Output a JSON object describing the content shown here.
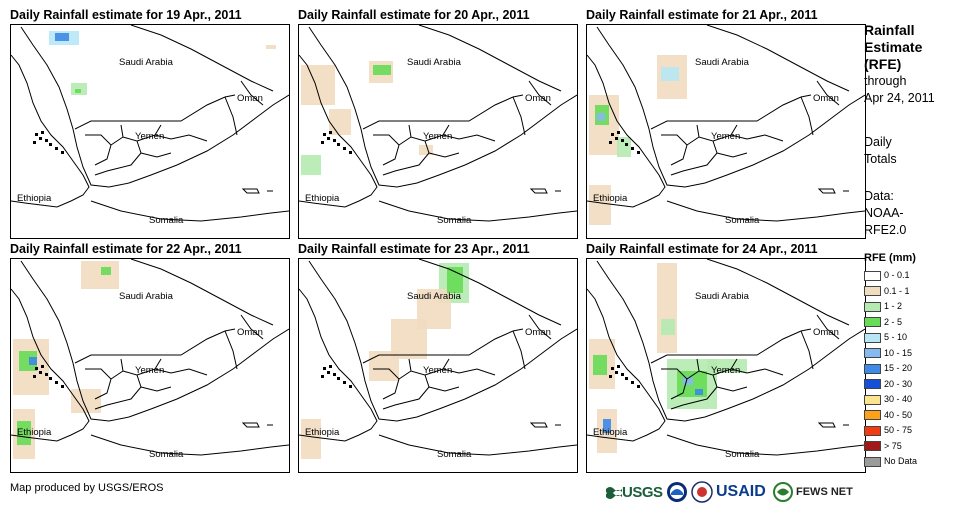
{
  "panels": [
    {
      "title": "Daily Rainfall estimate for 19 Apr., 2011"
    },
    {
      "title": "Daily Rainfall estimate for 20 Apr., 2011"
    },
    {
      "title": "Daily Rainfall estimate for 21 Apr., 2011"
    },
    {
      "title": "Daily Rainfall estimate for 22 Apr., 2011"
    },
    {
      "title": "Daily Rainfall estimate for 23 Apr., 2011"
    },
    {
      "title": "Daily Rainfall estimate for 24 Apr., 2011"
    }
  ],
  "labels": {
    "saudi": "Saudi Arabia",
    "oman": "Oman",
    "yemen": "Yemen",
    "ethiopia": "Ethiopia",
    "somalia": "Somalia"
  },
  "side": {
    "heading_lines": [
      "Rainfall",
      "Estimate",
      "(RFE)"
    ],
    "through_lines": [
      "through",
      "Apr 24, 2011"
    ],
    "totals_lines": [
      "Daily",
      "Totals"
    ],
    "data_lines": [
      "Data:",
      "NOAA-",
      "RFE2.0"
    ]
  },
  "legend": {
    "title": "RFE (mm)",
    "items": [
      {
        "label": "0 - 0.1",
        "color": "#ffffff"
      },
      {
        "label": "0.1 - 1",
        "color": "#f2dcc0"
      },
      {
        "label": "1 - 2",
        "color": "#b5eab0"
      },
      {
        "label": "2 - 5",
        "color": "#66dd55"
      },
      {
        "label": "5 - 10",
        "color": "#b7e7f5"
      },
      {
        "label": "10 - 15",
        "color": "#86b9f0"
      },
      {
        "label": "15 - 20",
        "color": "#3d8ae8"
      },
      {
        "label": "20 - 30",
        "color": "#1450d8"
      },
      {
        "label": "30 - 40",
        "color": "#fbe48e"
      },
      {
        "label": "40 - 50",
        "color": "#fba21a"
      },
      {
        "label": "50 - 75",
        "color": "#f03c10"
      },
      {
        "label": "> 75",
        "color": "#a01818"
      },
      {
        "label": "No Data",
        "color": "#9b9b9b"
      }
    ]
  },
  "footer": {
    "credit": "Map produced by USGS/EROS",
    "logos": [
      "USGS",
      "NOAA",
      "USAID",
      "FEWS NET"
    ]
  }
}
